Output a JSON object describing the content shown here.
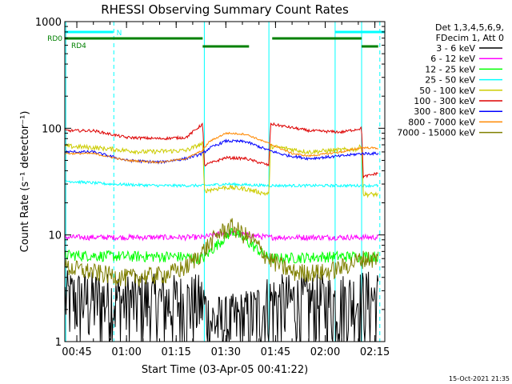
{
  "chart_data": {
    "type": "line",
    "title": "RHESSI Observing Summary Count Rates",
    "xlabel": "Start Time (03-Apr-05 00:41:22)",
    "ylabel": "Count Rate (s⁻¹ detector⁻¹)",
    "y_scale": "log",
    "ylim": [
      1,
      1000
    ],
    "xlim": [
      "00:41:22",
      "02:18:00"
    ],
    "y_ticks": [
      "1",
      "10",
      "100",
      "1000"
    ],
    "x_ticks": [
      "00:45",
      "01:00",
      "01:15",
      "01:30",
      "01:45",
      "02:00",
      "02:15"
    ],
    "timestamp": "15-Oct-2021 21:35",
    "legend": {
      "position": "right",
      "header": [
        "Det 1,3,4,5,6,9,",
        "FDecim 1, Att 0"
      ],
      "entries": [
        {
          "label": "3 - 6 keV",
          "color": "#000000"
        },
        {
          "label": "6 - 12 keV",
          "color": "#ff00ff"
        },
        {
          "label": "12 - 25 keV",
          "color": "#00ff00"
        },
        {
          "label": "25 - 50 keV",
          "color": "#00ffff"
        },
        {
          "label": "50 - 100 keV",
          "color": "#cccc00"
        },
        {
          "label": "100 - 300 keV",
          "color": "#dd0000"
        },
        {
          "label": "300 - 800 keV",
          "color": "#0000ff"
        },
        {
          "label": "800 - 7000 keV",
          "color": "#ff8800"
        },
        {
          "label": "7000 - 15000 keV",
          "color": "#808000"
        }
      ]
    },
    "flags": [
      {
        "label": "N",
        "color": "#00ffff",
        "segments": [
          [
            "00:41:22",
            "00:56:00"
          ],
          [
            "02:03:00",
            "02:18:00"
          ]
        ]
      },
      {
        "label": "RD0",
        "color": "#008000",
        "segments": [
          [
            "00:41:22",
            "01:23:00"
          ],
          [
            "01:44:00",
            "02:11:00"
          ]
        ]
      },
      {
        "label": "RD4",
        "color": "#008000",
        "segments": [
          [
            "01:23:00",
            "01:37:00"
          ],
          [
            "02:11:00",
            "02:16:00"
          ]
        ]
      }
    ],
    "vertical_lines": {
      "solid": [
        "00:41:40",
        "01:23:30",
        "01:43:00",
        "02:03:00",
        "02:11:00"
      ],
      "dashed": [
        "00:56:10",
        "02:16:30"
      ]
    },
    "series": [
      {
        "name": "3 - 6 keV",
        "color": "#000000",
        "noise": 0.8,
        "points": [
          [
            "00:41:30",
            2.6
          ],
          [
            "00:56:00",
            2.5
          ],
          [
            "01:10:00",
            2.4
          ],
          [
            "01:23:00",
            2.4
          ],
          [
            "01:25:00",
            1.6
          ],
          [
            "01:30:00",
            1.5
          ],
          [
            "01:38:00",
            1.8
          ],
          [
            "01:43:00",
            2.4
          ],
          [
            "02:03:00",
            2.4
          ],
          [
            "02:11:00",
            2.6
          ],
          [
            "02:16:00",
            2.6
          ]
        ]
      },
      {
        "name": "6 - 12 keV",
        "color": "#ff00ff",
        "noise": 0.06,
        "points": [
          [
            "00:41:30",
            9.5
          ],
          [
            "01:00:00",
            9.5
          ],
          [
            "01:23:00",
            9.5
          ],
          [
            "01:30:00",
            10.5
          ],
          [
            "01:43:00",
            9.5
          ],
          [
            "02:16:00",
            9.5
          ]
        ]
      },
      {
        "name": "12 - 25 keV",
        "color": "#00ff00",
        "noise": 0.12,
        "points": [
          [
            "00:41:30",
            6.5
          ],
          [
            "01:00:00",
            6.3
          ],
          [
            "01:15:00",
            6.3
          ],
          [
            "01:23:00",
            6.0
          ],
          [
            "01:28:00",
            8.5
          ],
          [
            "01:32:00",
            11.0
          ],
          [
            "01:38:00",
            8.0
          ],
          [
            "01:43:00",
            6.0
          ],
          [
            "02:03:00",
            6.3
          ],
          [
            "02:16:00",
            6.3
          ]
        ]
      },
      {
        "name": "25 - 50 keV",
        "color": "#00ffff",
        "noise": 0.03,
        "points": [
          [
            "00:41:30",
            32
          ],
          [
            "00:55:00",
            30
          ],
          [
            "01:10:00",
            29
          ],
          [
            "01:23:00",
            29
          ],
          [
            "01:30:00",
            30
          ],
          [
            "01:43:00",
            29
          ],
          [
            "02:03:00",
            29
          ],
          [
            "02:11:00",
            29
          ],
          [
            "02:16:00",
            29
          ]
        ]
      },
      {
        "name": "50 - 100 keV",
        "color": "#cccc00",
        "noise": 0.05,
        "points": [
          [
            "00:41:30",
            68
          ],
          [
            "00:50:00",
            66
          ],
          [
            "01:05:00",
            60
          ],
          [
            "01:18:00",
            62
          ],
          [
            "01:23:00",
            72
          ],
          [
            "01:23:30",
            26
          ],
          [
            "01:30:00",
            28
          ],
          [
            "01:36:00",
            27
          ],
          [
            "01:43:00",
            24
          ],
          [
            "01:43:30",
            68
          ],
          [
            "01:55:00",
            60
          ],
          [
            "02:10:00",
            64
          ],
          [
            "02:11:00",
            70
          ],
          [
            "02:11:30",
            24
          ],
          [
            "02:16:00",
            24
          ]
        ]
      },
      {
        "name": "100 - 300 keV",
        "color": "#dd0000",
        "noise": 0.03,
        "points": [
          [
            "00:41:30",
            95
          ],
          [
            "00:50:00",
            95
          ],
          [
            "01:00:00",
            82
          ],
          [
            "01:10:00",
            80
          ],
          [
            "01:18:00",
            82
          ],
          [
            "01:23:00",
            110
          ],
          [
            "01:23:30",
            45
          ],
          [
            "01:30:00",
            53
          ],
          [
            "01:36:00",
            52
          ],
          [
            "01:43:00",
            45
          ],
          [
            "01:43:30",
            110
          ],
          [
            "01:55:00",
            95
          ],
          [
            "02:05:00",
            92
          ],
          [
            "02:11:00",
            100
          ],
          [
            "02:11:30",
            35
          ],
          [
            "02:16:00",
            38
          ]
        ]
      },
      {
        "name": "300 - 800 keV",
        "color": "#0000ff",
        "noise": 0.03,
        "points": [
          [
            "00:41:30",
            60
          ],
          [
            "00:50:00",
            60
          ],
          [
            "01:00:00",
            50
          ],
          [
            "01:10:00",
            48
          ],
          [
            "01:18:00",
            52
          ],
          [
            "01:23:00",
            58
          ],
          [
            "01:25:00",
            65
          ],
          [
            "01:30:00",
            76
          ],
          [
            "01:36:00",
            75
          ],
          [
            "01:43:00",
            62
          ],
          [
            "01:48:00",
            56
          ],
          [
            "01:55:00",
            52
          ],
          [
            "02:05:00",
            55
          ],
          [
            "02:11:00",
            58
          ],
          [
            "02:16:00",
            58
          ]
        ]
      },
      {
        "name": "800 - 7000 keV",
        "color": "#ff8800",
        "noise": 0.02,
        "points": [
          [
            "00:41:30",
            58
          ],
          [
            "00:50:00",
            58
          ],
          [
            "01:00:00",
            50
          ],
          [
            "01:10:00",
            48
          ],
          [
            "01:18:00",
            52
          ],
          [
            "01:23:00",
            62
          ],
          [
            "01:25:00",
            75
          ],
          [
            "01:30:00",
            90
          ],
          [
            "01:36:00",
            88
          ],
          [
            "01:43:00",
            72
          ],
          [
            "01:50:00",
            58
          ],
          [
            "01:55:00",
            55
          ],
          [
            "02:05:00",
            60
          ],
          [
            "02:11:00",
            66
          ],
          [
            "02:16:00",
            65
          ]
        ]
      },
      {
        "name": "7000 - 15000 keV",
        "color": "#808000",
        "noise": 0.2,
        "points": [
          [
            "00:41:30",
            5.0
          ],
          [
            "00:50:00",
            4.5
          ],
          [
            "01:00:00",
            4.0
          ],
          [
            "01:12:00",
            4.3
          ],
          [
            "01:18:00",
            5.0
          ],
          [
            "01:23:00",
            7.0
          ],
          [
            "01:28:00",
            10.5
          ],
          [
            "01:32:00",
            12.0
          ],
          [
            "01:38:00",
            9.0
          ],
          [
            "01:43:00",
            6.0
          ],
          [
            "01:50:00",
            4.5
          ],
          [
            "02:00:00",
            4.5
          ],
          [
            "02:05:00",
            5.0
          ],
          [
            "02:11:00",
            6.0
          ],
          [
            "02:16:00",
            6.0
          ]
        ]
      }
    ]
  }
}
